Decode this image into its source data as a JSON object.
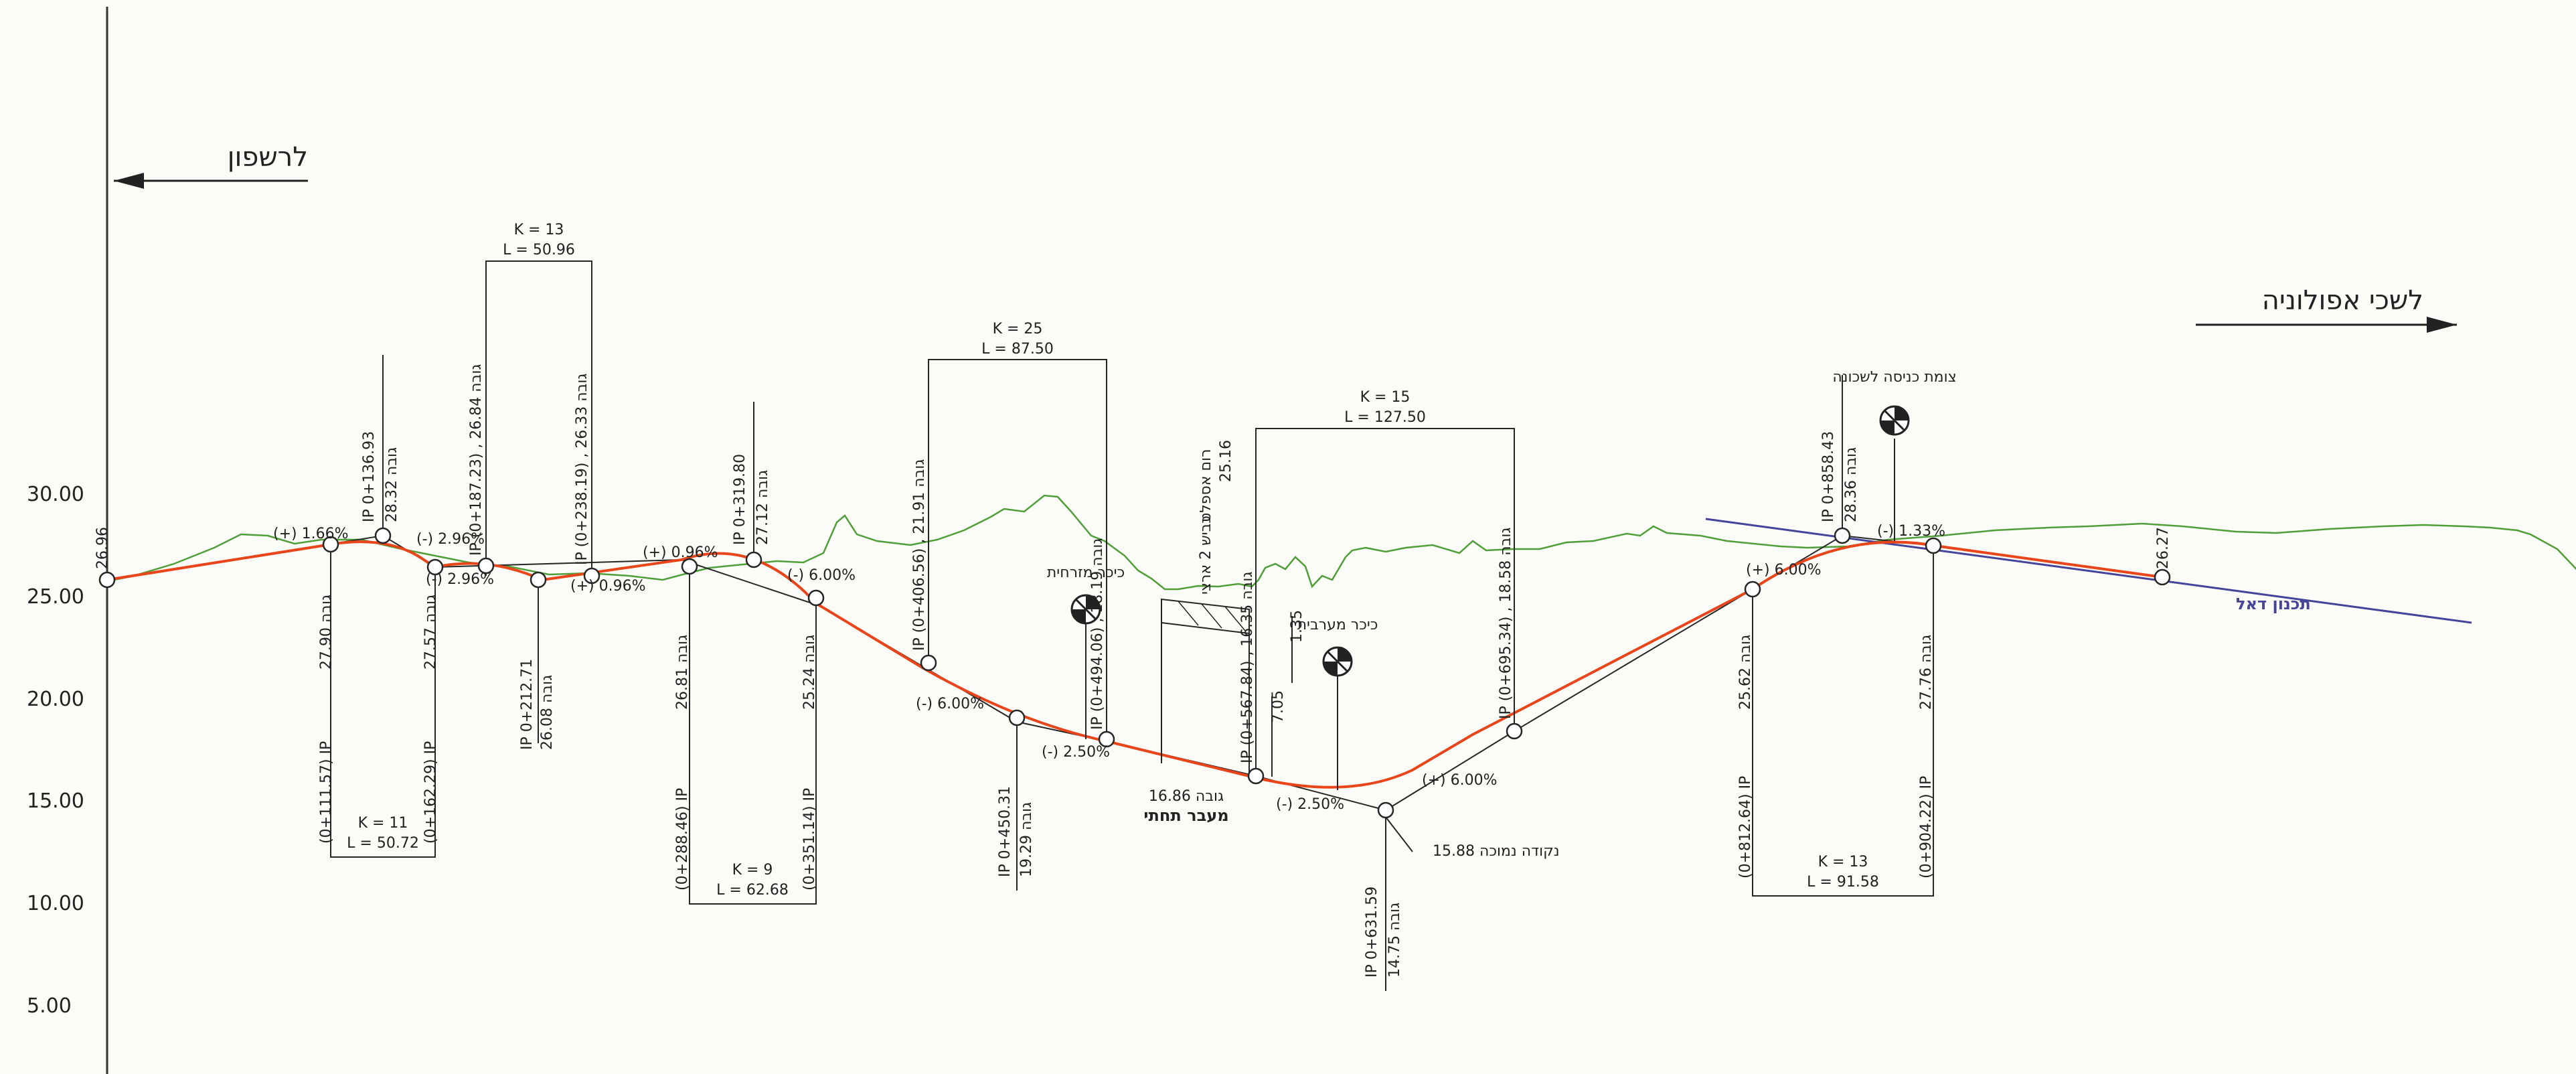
{
  "directions": {
    "left": "לרשפון",
    "right": "לשכי אפולוניה"
  },
  "y_axis": {
    "ticks": [
      "30.00",
      "25.00",
      "20.00",
      "15.00",
      "10.00",
      "5.00"
    ]
  },
  "point_labels": {
    "start": "26.96",
    "end": "26.27",
    "low_point": "15.88 נקודה נמוכה",
    "underpass_elev": "16.86 גובה",
    "underpass": "מעבר תחתי"
  },
  "curves": [
    {
      "k": "K = 11",
      "l": "L =  50.72"
    },
    {
      "k": "K = 13",
      "l": "L =  50.96"
    },
    {
      "k": "K = 9",
      "l": "L =  62.68"
    },
    {
      "k": "K = 25",
      "l": "L =  87.50"
    },
    {
      "k": "K = 15",
      "l": "L =  127.50"
    },
    {
      "k": "K = 13",
      "l": "L =  91.58"
    }
  ],
  "stations": [
    {
      "text": "IP 0+136.93"
    },
    {
      "text": "28.32 גובה"
    },
    {
      "text": "(0+111.57) IP"
    },
    {
      "text": "27.90 גובה"
    },
    {
      "text": "(0+162.29) IP"
    },
    {
      "text": "27.57 גובה"
    },
    {
      "text": "IP (0+187.23) , 26.84 גובה"
    },
    {
      "text": "IP 0+212.71"
    },
    {
      "text": "26.08 גובה"
    },
    {
      "text": "IP (0+238.19) , 26.33 גובה"
    },
    {
      "text": "(0+288.46) IP"
    },
    {
      "text": "26.81 גובה"
    },
    {
      "text": "IP 0+319.80"
    },
    {
      "text": "27.12 גובה"
    },
    {
      "text": "(0+351.14) IP"
    },
    {
      "text": "25.24 גובה"
    },
    {
      "text": "IP (0+406.56) , 21.91 גובה"
    },
    {
      "text": "IP 0+450.31"
    },
    {
      "text": "19.29 גובה"
    },
    {
      "text": "IP (0+494.06) , 18.19 גובה"
    },
    {
      "text": "IP (0+567.84) , 16.35 גובה"
    },
    {
      "text": "IP 0+631.59"
    },
    {
      "text": "14.75 גובה"
    },
    {
      "text": "IP (0+695.34) , 18.58 גובה"
    },
    {
      "text": "(0+812.64) IP"
    },
    {
      "text": "25.62 גובה"
    },
    {
      "text": "IP 0+858.43"
    },
    {
      "text": "28.36 גובה"
    },
    {
      "text": "(0+904.22) IP"
    },
    {
      "text": "27.76 גובה"
    }
  ],
  "grades": [
    "(+) 1.66%",
    "(-) 2.96%",
    "(-) 2.96%",
    "(+) 0.96%",
    "(+) 0.96%",
    "(-) 6.00%",
    "(-) 6.00%",
    "(-) 2.50%",
    "(-) 2.50%",
    "(+) 6.00%",
    "(+) 6.00%",
    "(-) 1.33%"
  ],
  "annotations": {
    "west_circle": "כיכר מערבית",
    "east_circle": "כיכר מזרחית",
    "road2": "כביש 2 ארצי",
    "asphalt": "רום אספלט",
    "asphalt_val": "25.16",
    "clear1": "7.05",
    "clear2": "1.35",
    "entry": "צומת כניסה לשכונה",
    "daled": "תכנון דאל"
  },
  "colors": {
    "profile": "#e8461a",
    "ground": "#4f9e38",
    "planned": "#45439a",
    "lines": "#262626"
  }
}
